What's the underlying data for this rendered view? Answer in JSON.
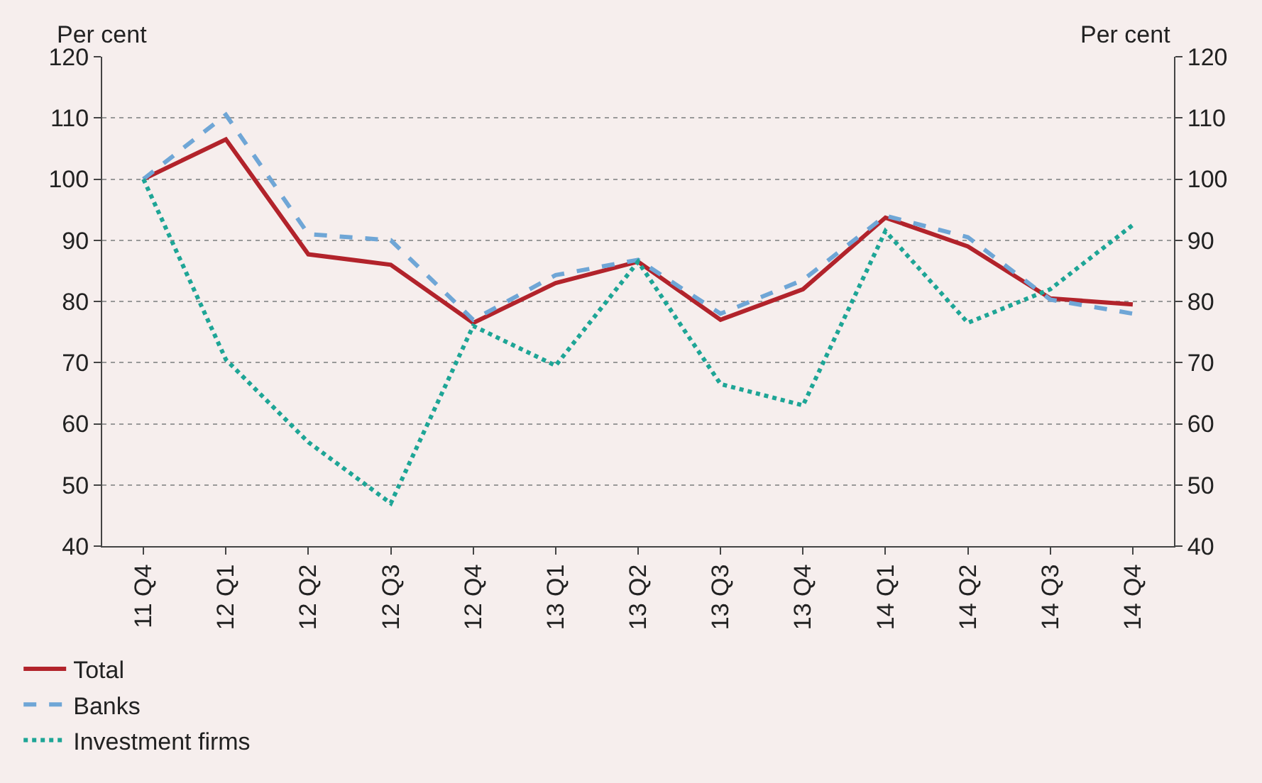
{
  "chart_data": {
    "type": "line",
    "ylabel": "Per cent",
    "y2label": "Per cent",
    "categories": [
      "11 Q4",
      "12 Q1",
      "12 Q2",
      "12 Q3",
      "12 Q4",
      "13 Q1",
      "13 Q2",
      "13 Q3",
      "13 Q4",
      "14 Q1",
      "14 Q2",
      "14 Q3",
      "14 Q4"
    ],
    "series": [
      {
        "name": "Total",
        "color": "#b2232b",
        "line_style": "solid",
        "values": [
          100,
          106.5,
          87.7,
          86,
          76.5,
          83,
          86.5,
          77,
          82,
          93.7,
          89,
          80.5,
          79.5
        ]
      },
      {
        "name": "Banks",
        "color": "#6fa6d6",
        "line_style": "dashed",
        "values": [
          100,
          110.5,
          91,
          90,
          77,
          84.3,
          86.8,
          78,
          83.5,
          94,
          90.5,
          80.3,
          78
        ]
      },
      {
        "name": "Investment firms",
        "color": "#1ea596",
        "line_style": "dotted",
        "values": [
          100,
          70.5,
          57,
          47,
          76,
          69.5,
          86.5,
          66.5,
          63,
          91.5,
          76.5,
          82,
          92.5
        ]
      }
    ],
    "ylim": [
      40,
      120
    ],
    "yticks": [
      40,
      50,
      60,
      70,
      80,
      90,
      100,
      110,
      120
    ],
    "y2lim": [
      40,
      120
    ],
    "y2ticks": [
      40,
      50,
      60,
      70,
      80,
      90,
      100,
      110,
      120
    ],
    "grid": "y",
    "legend": "bottom left",
    "marker": "none"
  }
}
